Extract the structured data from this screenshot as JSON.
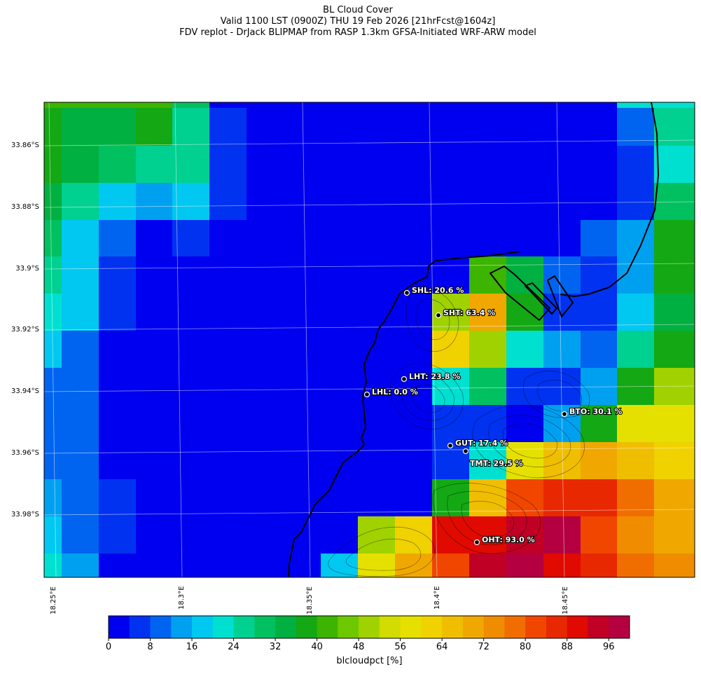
{
  "title": {
    "line1": "BL Cloud Cover",
    "line2": "Valid 1100 LST (0900Z) THU 19 Feb 2026 [21hrFcst@1604z]",
    "line3": "FDV replot - DrJack BLIPMAP from RASP 1.3km GFSA-Initiated WRF-ARW model"
  },
  "map": {
    "lat_labels": [
      "33.86°S",
      "33.88°S",
      "33.9°S",
      "33.92°S",
      "33.94°S",
      "33.96°S",
      "33.98°S"
    ],
    "lon_labels": [
      "18.25°E",
      "18.3°E",
      "18.35°E",
      "18.4°E",
      "18.45°E"
    ],
    "stations": [
      {
        "code": "SHL",
        "label": "SHL: 20.6 %",
        "value": 20.6
      },
      {
        "code": "SHT",
        "label": "SHT: 63.4 %",
        "value": 63.4
      },
      {
        "code": "LHT",
        "label": "LHT: 23.8 %",
        "value": 23.8
      },
      {
        "code": "LHL",
        "label": "LHL: 0.0 %",
        "value": 0.0
      },
      {
        "code": "BTO",
        "label": "BTO: 30.1 %",
        "value": 30.1
      },
      {
        "code": "GUT",
        "label": "GUT: 17.4 %",
        "value": 17.4
      },
      {
        "code": "TMT",
        "label": "TMT: 29.5 %",
        "value": 29.5
      },
      {
        "code": "OHT",
        "label": "OHT: 93.0 %",
        "value": 93.0
      }
    ],
    "grid_values": [
      [
        40,
        40,
        40,
        40,
        28,
        0,
        0,
        0,
        0,
        0,
        0,
        0,
        0,
        0,
        0,
        0,
        20,
        22
      ],
      [
        38,
        34,
        34,
        38,
        26,
        4,
        0,
        0,
        0,
        0,
        0,
        0,
        0,
        0,
        0,
        0,
        10,
        24
      ],
      [
        36,
        32,
        28,
        24,
        24,
        4,
        0,
        0,
        0,
        0,
        0,
        0,
        0,
        0,
        0,
        0,
        6,
        20
      ],
      [
        32,
        26,
        18,
        14,
        18,
        4,
        0,
        0,
        0,
        0,
        0,
        0,
        0,
        0,
        0,
        0,
        4,
        28
      ],
      [
        28,
        18,
        10,
        0,
        6,
        0,
        0,
        0,
        0,
        0,
        0,
        0,
        0,
        0,
        0,
        8,
        14,
        36
      ],
      [
        24,
        16,
        6,
        0,
        0,
        0,
        0,
        0,
        0,
        0,
        0,
        0,
        40,
        32,
        8,
        4,
        14,
        36
      ],
      [
        22,
        16,
        6,
        0,
        0,
        0,
        0,
        0,
        0,
        0,
        0,
        50,
        70,
        36,
        6,
        4,
        16,
        34
      ],
      [
        18,
        10,
        0,
        0,
        0,
        0,
        0,
        0,
        0,
        0,
        0,
        62,
        50,
        22,
        14,
        10,
        24,
        38
      ],
      [
        10,
        8,
        0,
        0,
        0,
        0,
        0,
        0,
        0,
        0,
        0,
        22,
        30,
        4,
        4,
        14,
        36,
        50
      ],
      [
        8,
        8,
        0,
        0,
        0,
        0,
        0,
        0,
        0,
        0,
        0,
        4,
        4,
        0,
        14,
        38,
        56,
        56
      ],
      [
        8,
        8,
        0,
        0,
        0,
        0,
        0,
        0,
        0,
        0,
        0,
        4,
        20,
        56,
        66,
        68,
        66,
        60
      ],
      [
        12,
        8,
        4,
        0,
        0,
        0,
        0,
        0,
        0,
        0,
        0,
        38,
        66,
        82,
        84,
        84,
        76,
        68
      ],
      [
        16,
        10,
        4,
        0,
        0,
        0,
        0,
        0,
        0,
        48,
        62,
        90,
        90,
        92,
        96,
        80,
        72,
        68
      ],
      [
        20,
        12,
        0,
        0,
        0,
        0,
        0,
        0,
        18,
        58,
        70,
        80,
        92,
        96,
        90,
        84,
        76,
        72
      ]
    ],
    "grid_rows_top_values": "row 0 is northernmost"
  },
  "colorbar": {
    "ticks": [
      "0",
      "8",
      "16",
      "24",
      "32",
      "40",
      "48",
      "56",
      "64",
      "72",
      "80",
      "88",
      "96"
    ],
    "label": "blcloudpct [%]",
    "colors": [
      "#0000f0",
      "#0032f0",
      "#0064f0",
      "#00a0f0",
      "#00c8f0",
      "#00e0d0",
      "#00d090",
      "#00c060",
      "#00b040",
      "#14a814",
      "#3cb400",
      "#6ec800",
      "#a0d200",
      "#d2dc00",
      "#e6e000",
      "#f0d200",
      "#f0be00",
      "#f0a800",
      "#f08c00",
      "#f06e00",
      "#f04600",
      "#e82800",
      "#e00a00",
      "#c00024",
      "#b40040"
    ]
  }
}
